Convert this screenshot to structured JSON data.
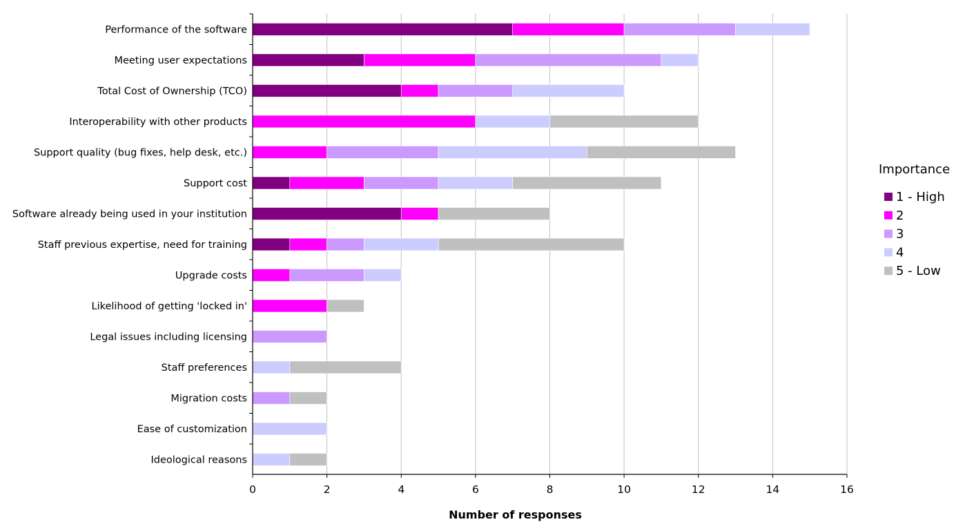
{
  "chart_data": {
    "type": "bar",
    "orientation": "horizontal",
    "stacked": true,
    "xlabel": "Number of responses",
    "xlim": [
      0,
      16
    ],
    "x_ticks": [
      0,
      2,
      4,
      6,
      8,
      10,
      12,
      14,
      16
    ],
    "grid": "vertical",
    "legend": {
      "title": "Importance",
      "position": "right"
    },
    "categories": [
      "Performance of the software",
      "Meeting user expectations",
      "Total Cost of Ownership (TCO)",
      "Interoperability with other products",
      "Support quality (bug fixes, help desk, etc.)",
      "Support cost",
      "Software already being used in your institution",
      "Staff previous expertise, need for training",
      "Upgrade costs",
      "Likelihood of getting 'locked in'",
      "Legal issues including licensing",
      "Staff preferences",
      "Migration costs",
      "Ease of customization",
      "Ideological reasons"
    ],
    "series": [
      {
        "name": "1 - High",
        "color": "#800080",
        "values": [
          7,
          3,
          4,
          0,
          0,
          1,
          4,
          1,
          0,
          0,
          0,
          0,
          0,
          0,
          0
        ]
      },
      {
        "name": "2",
        "color": "#ff00ff",
        "values": [
          3,
          3,
          1,
          6,
          2,
          2,
          1,
          1,
          1,
          2,
          0,
          0,
          0,
          0,
          0
        ]
      },
      {
        "name": "3",
        "color": "#cc99ff",
        "values": [
          3,
          5,
          2,
          0,
          3,
          2,
          0,
          1,
          2,
          0,
          2,
          0,
          1,
          0,
          0
        ]
      },
      {
        "name": "4",
        "color": "#ccccff",
        "values": [
          2,
          1,
          3,
          2,
          4,
          2,
          0,
          2,
          1,
          0,
          0,
          1,
          0,
          2,
          1
        ]
      },
      {
        "name": "5 - Low",
        "color": "#c0c0c0",
        "values": [
          0,
          0,
          0,
          4,
          4,
          4,
          3,
          5,
          0,
          1,
          0,
          3,
          1,
          0,
          1
        ]
      }
    ]
  }
}
